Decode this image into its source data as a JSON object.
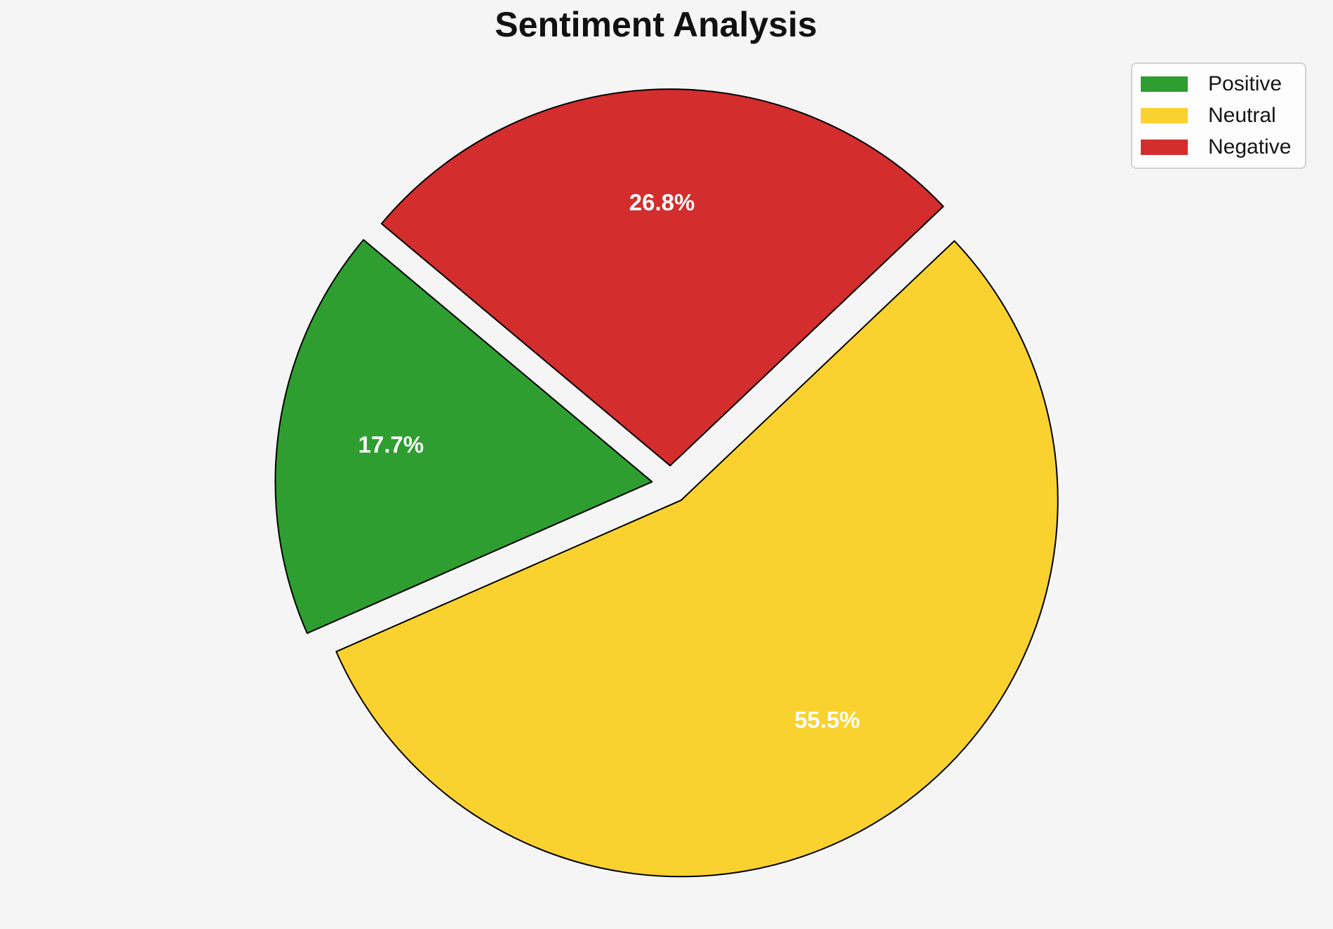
{
  "page": {
    "background_color": "#f5f5f5"
  },
  "chart_data": {
    "type": "pie",
    "title": "Sentiment Analysis",
    "slices": [
      {
        "label": "Positive",
        "value": 17.7,
        "percent_label": "17.7%",
        "color": "#2e9e31"
      },
      {
        "label": "Neutral",
        "value": 55.5,
        "percent_label": "55.5%",
        "color": "#fad22f"
      },
      {
        "label": "Negative",
        "value": 26.8,
        "percent_label": "26.8%",
        "color": "#d32d2e"
      }
    ],
    "start_angle_deg": 140,
    "direction": "counterclockwise",
    "explode_fraction": 0.05,
    "pct_distance": 0.7,
    "edge_color": "#000000",
    "edge_width": 2,
    "percent_label_color": "#ffffff",
    "legend_position": "upper right",
    "legend_entries": [
      "Positive",
      "Neutral",
      "Negative"
    ]
  }
}
